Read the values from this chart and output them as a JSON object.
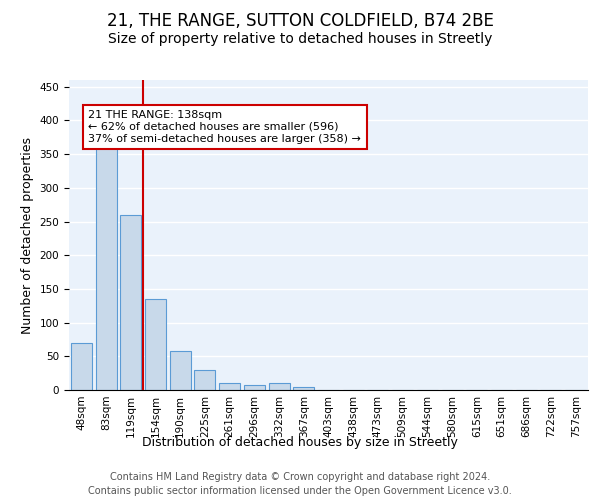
{
  "title_line1": "21, THE RANGE, SUTTON COLDFIELD, B74 2BE",
  "title_line2": "Size of property relative to detached houses in Streetly",
  "xlabel": "Distribution of detached houses by size in Streetly",
  "ylabel": "Number of detached properties",
  "bar_labels": [
    "48sqm",
    "83sqm",
    "119sqm",
    "154sqm",
    "190sqm",
    "225sqm",
    "261sqm",
    "296sqm",
    "332sqm",
    "367sqm",
    "403sqm",
    "438sqm",
    "473sqm",
    "509sqm",
    "544sqm",
    "580sqm",
    "615sqm",
    "651sqm",
    "686sqm",
    "722sqm",
    "757sqm"
  ],
  "bar_heights": [
    70,
    380,
    260,
    135,
    58,
    30,
    10,
    7,
    10,
    5,
    0,
    0,
    0,
    0,
    0,
    0,
    0,
    0,
    0,
    0,
    0
  ],
  "bar_color": "#c8d9ea",
  "bar_edge_color": "#5b9bd5",
  "background_color": "#eaf2fb",
  "red_line_x": 2.5,
  "red_line_color": "#cc0000",
  "annotation_line1": "21 THE RANGE: 138sqm",
  "annotation_line2": "← 62% of detached houses are smaller (596)",
  "annotation_line3": "37% of semi-detached houses are larger (358) →",
  "annotation_box_color": "white",
  "annotation_box_edge": "#cc0000",
  "ylim": [
    0,
    460
  ],
  "yticks": [
    0,
    50,
    100,
    150,
    200,
    250,
    300,
    350,
    400,
    450
  ],
  "footer_line1": "Contains HM Land Registry data © Crown copyright and database right 2024.",
  "footer_line2": "Contains public sector information licensed under the Open Government Licence v3.0.",
  "title_fontsize": 12,
  "subtitle_fontsize": 10,
  "ylabel_fontsize": 9,
  "xlabel_fontsize": 9,
  "tick_fontsize": 7.5,
  "annotation_fontsize": 8,
  "footer_fontsize": 7
}
